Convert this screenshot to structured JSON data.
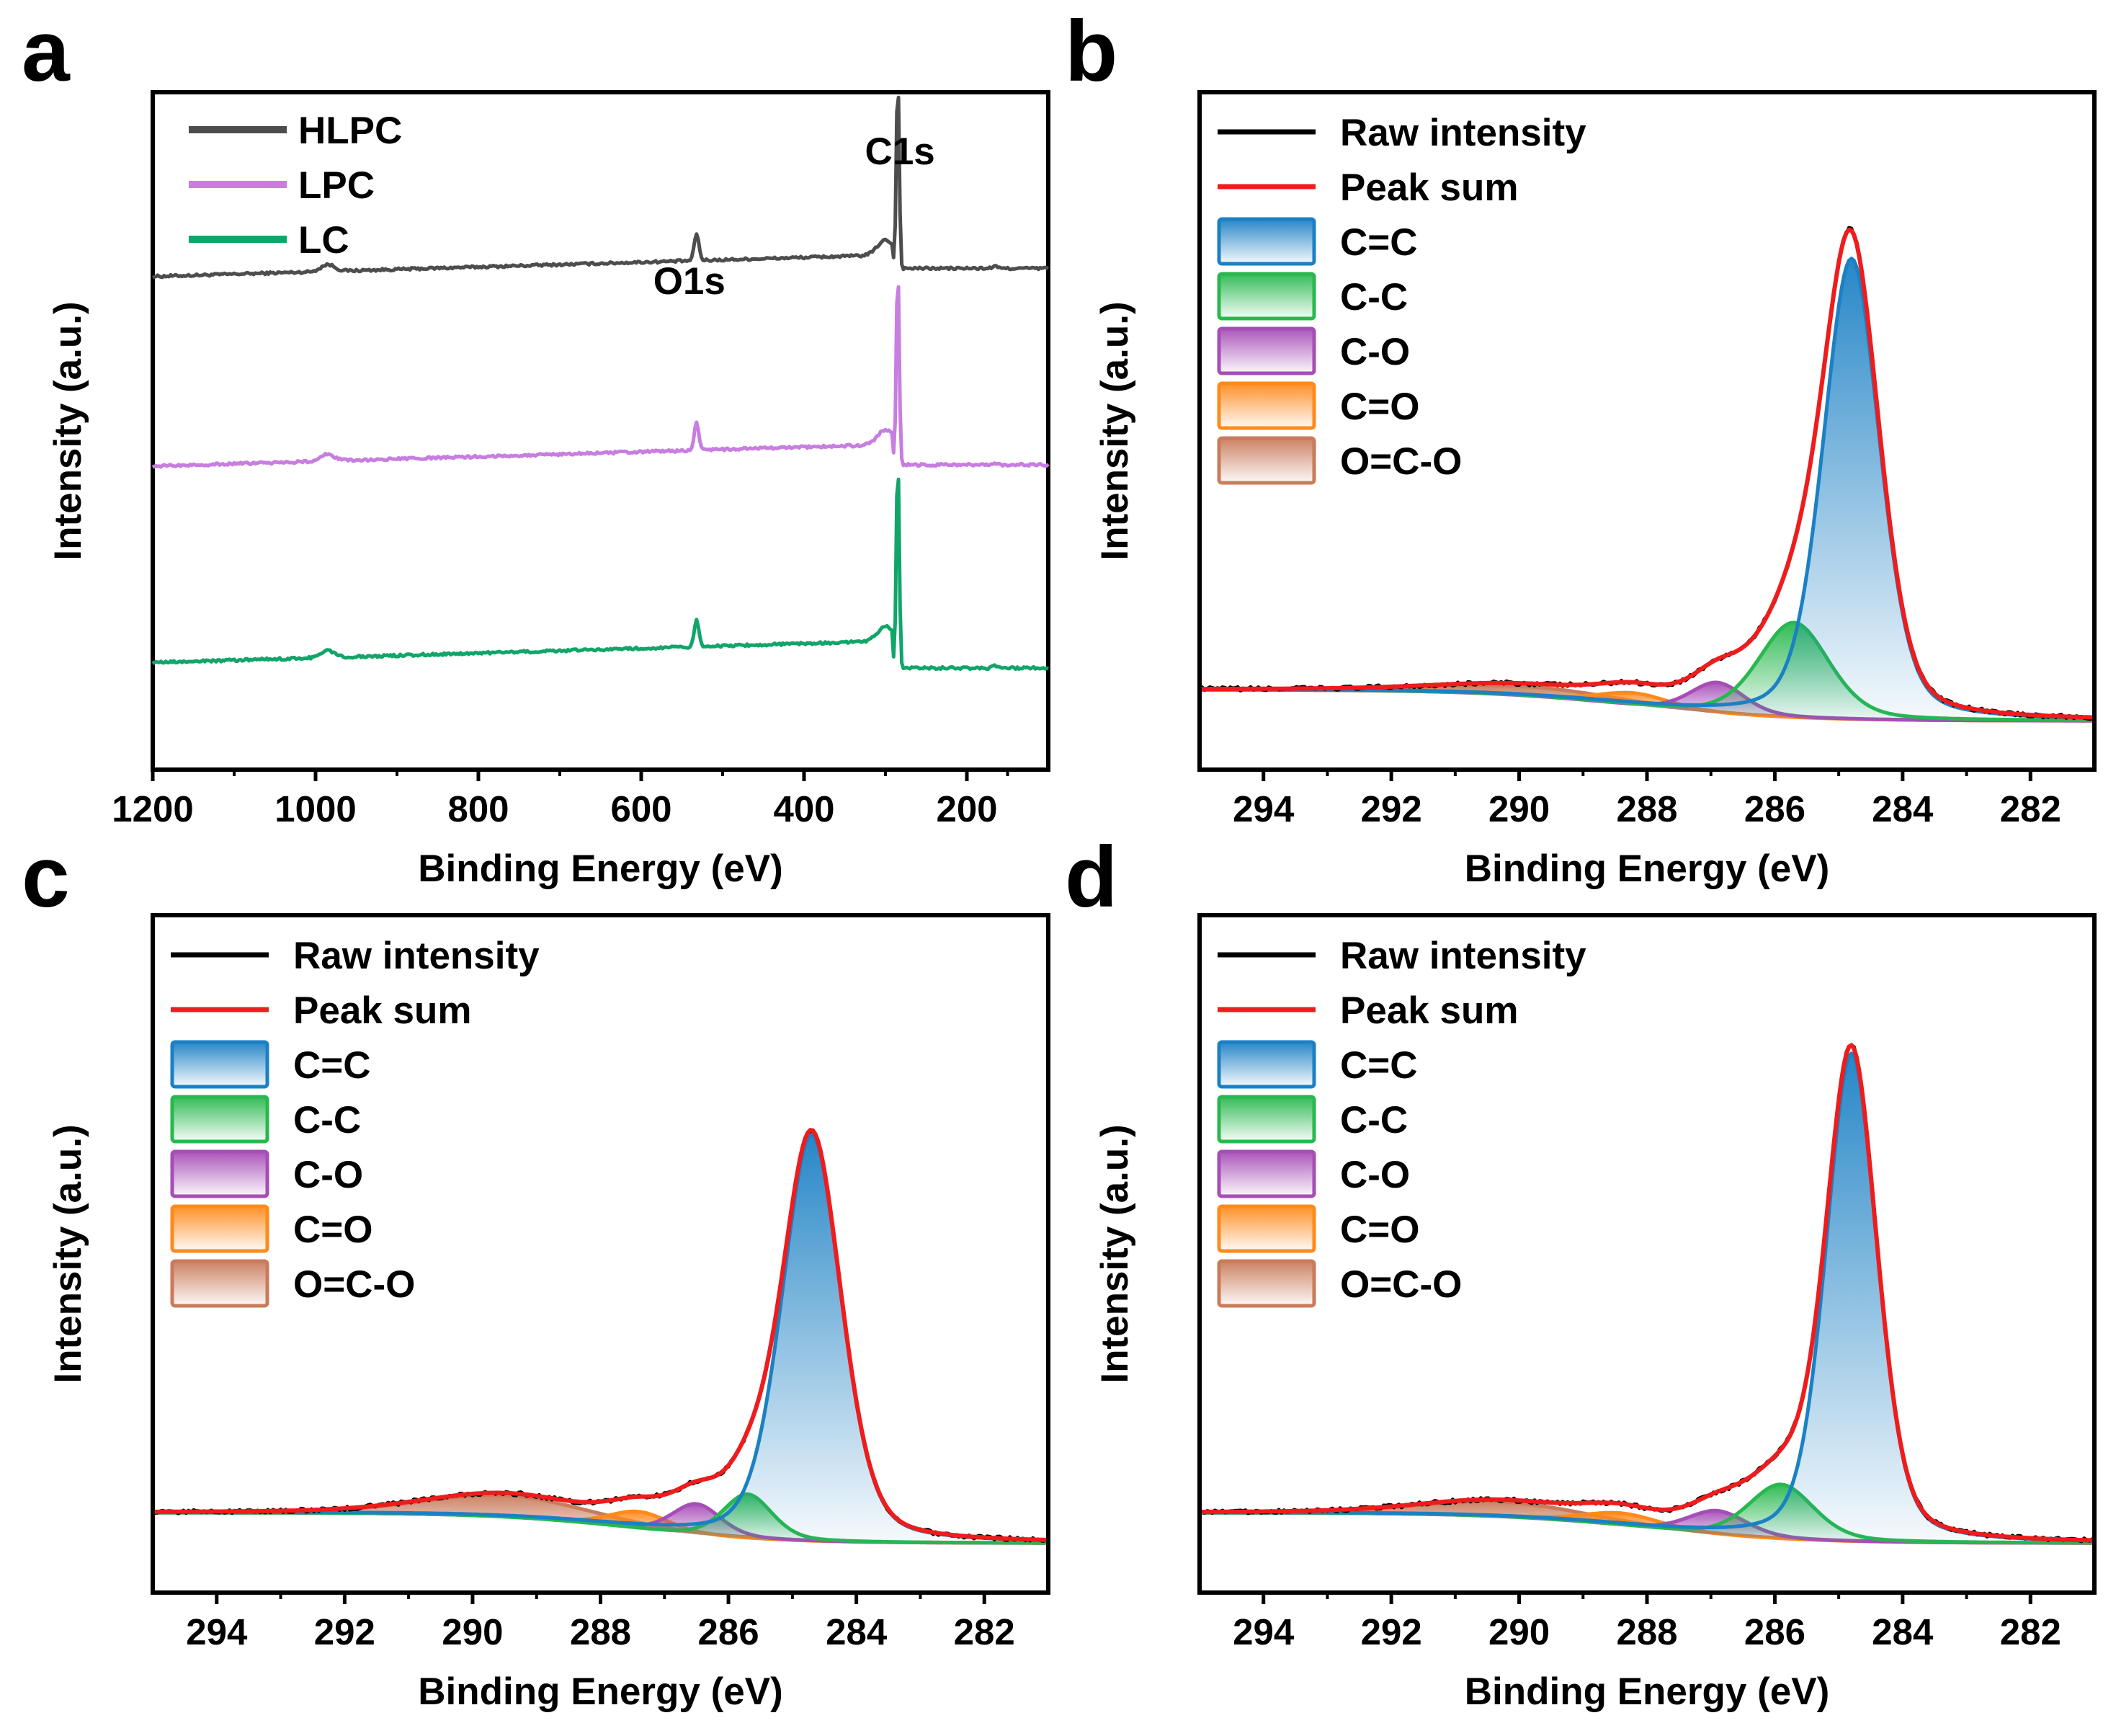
{
  "chart_data": [
    {
      "panel": "a",
      "type": "line",
      "title": "",
      "xlabel": "Binding Energy (eV)",
      "ylabel": "Intensity (a.u.)",
      "xlim": [
        1200,
        100
      ],
      "xticks": [
        1200,
        1000,
        800,
        600,
        400,
        200
      ],
      "ylim": [
        0,
        100
      ],
      "grid": false,
      "legend_position": "top-left",
      "annotations": [
        {
          "text": "O1s",
          "x": 532
        },
        {
          "text": "C1s",
          "x": 284.8
        }
      ],
      "series": [
        {
          "name": "HLPC",
          "color": "#4d4d4d",
          "baseline_high": 76,
          "baseline_low": 74,
          "o1s_peak": 80,
          "c1s_peak": 102
        },
        {
          "name": "LPC",
          "color": "#c77ee0",
          "baseline_high": 48,
          "baseline_low": 45,
          "o1s_peak": 52,
          "c1s_peak": 74
        },
        {
          "name": "LC",
          "color": "#12a56a",
          "baseline_high": 19,
          "baseline_low": 15,
          "o1s_peak": 23,
          "c1s_peak": 46
        }
      ]
    },
    {
      "panel": "b",
      "type": "line",
      "xlabel": "Binding Energy (eV)",
      "ylabel": "Intensity (a.u.)",
      "xlim": [
        295,
        281
      ],
      "xticks": [
        294,
        292,
        290,
        288,
        286,
        284,
        282
      ],
      "ylim": [
        0,
        100
      ],
      "grid": false,
      "legend_position": "top-left",
      "legend": [
        "Raw intensity",
        "Peak sum",
        "C=C",
        "C-C",
        "C-O",
        "C=O",
        "O=C-O"
      ],
      "background": {
        "left": 11.8,
        "right": 7.2,
        "mid": 288.2,
        "width": 1.2
      },
      "components": [
        {
          "name": "C=C",
          "center": 284.8,
          "fwhm": 1.05,
          "height": 68,
          "color": "#1b80c4"
        },
        {
          "name": "C-C",
          "center": 285.7,
          "fwhm": 1.3,
          "height": 14,
          "color": "#28b84e"
        },
        {
          "name": "C-O",
          "center": 286.9,
          "fwhm": 1.0,
          "height": 4.5,
          "color": "#a64db6"
        },
        {
          "name": "C=O",
          "center": 288.2,
          "fwhm": 1.3,
          "height": 1.8,
          "color": "#ff8a1c"
        },
        {
          "name": "O=C-O",
          "center": 289.9,
          "fwhm": 3.2,
          "height": 1.4,
          "color": "#c97b5b"
        }
      ]
    },
    {
      "panel": "c",
      "type": "line",
      "xlabel": "Binding Energy (eV)",
      "ylabel": "Intensity (a.u.)",
      "xlim": [
        295,
        281
      ],
      "xticks": [
        294,
        292,
        290,
        288,
        286,
        284,
        282
      ],
      "ylim": [
        0,
        100
      ],
      "grid": false,
      "legend_position": "top-left",
      "legend": [
        "Raw intensity",
        "Peak sum",
        "C=C",
        "C-C",
        "C-O",
        "C=O",
        "O=C-O"
      ],
      "background": {
        "left": 11.8,
        "right": 7.3,
        "mid": 287.5,
        "width": 1.1
      },
      "components": [
        {
          "name": "C=C",
          "center": 284.7,
          "fwhm": 1.1,
          "height": 60,
          "color": "#1b80c4"
        },
        {
          "name": "C-C",
          "center": 285.7,
          "fwhm": 0.9,
          "height": 6.5,
          "color": "#28b84e"
        },
        {
          "name": "C-O",
          "center": 286.5,
          "fwhm": 0.9,
          "height": 4.5,
          "color": "#a64db6"
        },
        {
          "name": "C=O",
          "center": 287.4,
          "fwhm": 1.1,
          "height": 2.5,
          "color": "#ff8a1c"
        },
        {
          "name": "O=C-O",
          "center": 289.5,
          "fwhm": 3.0,
          "height": 3.2,
          "color": "#c97b5b"
        }
      ]
    },
    {
      "panel": "d",
      "type": "line",
      "xlabel": "Binding Energy (eV)",
      "ylabel": "Intensity (a.u.)",
      "xlim": [
        295,
        281
      ],
      "xticks": [
        294,
        292,
        290,
        288,
        286,
        284,
        282
      ],
      "ylim": [
        0,
        100
      ],
      "grid": false,
      "legend_position": "top-left",
      "legend": [
        "Raw intensity",
        "Peak sum",
        "C=C",
        "C-C",
        "C-O",
        "C=O",
        "O=C-O"
      ],
      "background": {
        "left": 11.8,
        "right": 7.3,
        "mid": 288.0,
        "width": 1.2
      },
      "components": [
        {
          "name": "C=C",
          "center": 284.8,
          "fwhm": 0.95,
          "height": 72,
          "color": "#1b80c4"
        },
        {
          "name": "C-C",
          "center": 285.9,
          "fwhm": 1.2,
          "height": 8,
          "color": "#28b84e"
        },
        {
          "name": "C-O",
          "center": 286.9,
          "fwhm": 1.1,
          "height": 3.5,
          "color": "#a64db6"
        },
        {
          "name": "C=O",
          "center": 288.4,
          "fwhm": 1.4,
          "height": 1.8,
          "color": "#ff8a1c"
        },
        {
          "name": "O=C-O",
          "center": 290.3,
          "fwhm": 3.0,
          "height": 2.2,
          "color": "#c97b5b"
        }
      ]
    }
  ],
  "styles": {
    "raw_color": "#000000",
    "sum_color": "#ee1c1c"
  }
}
